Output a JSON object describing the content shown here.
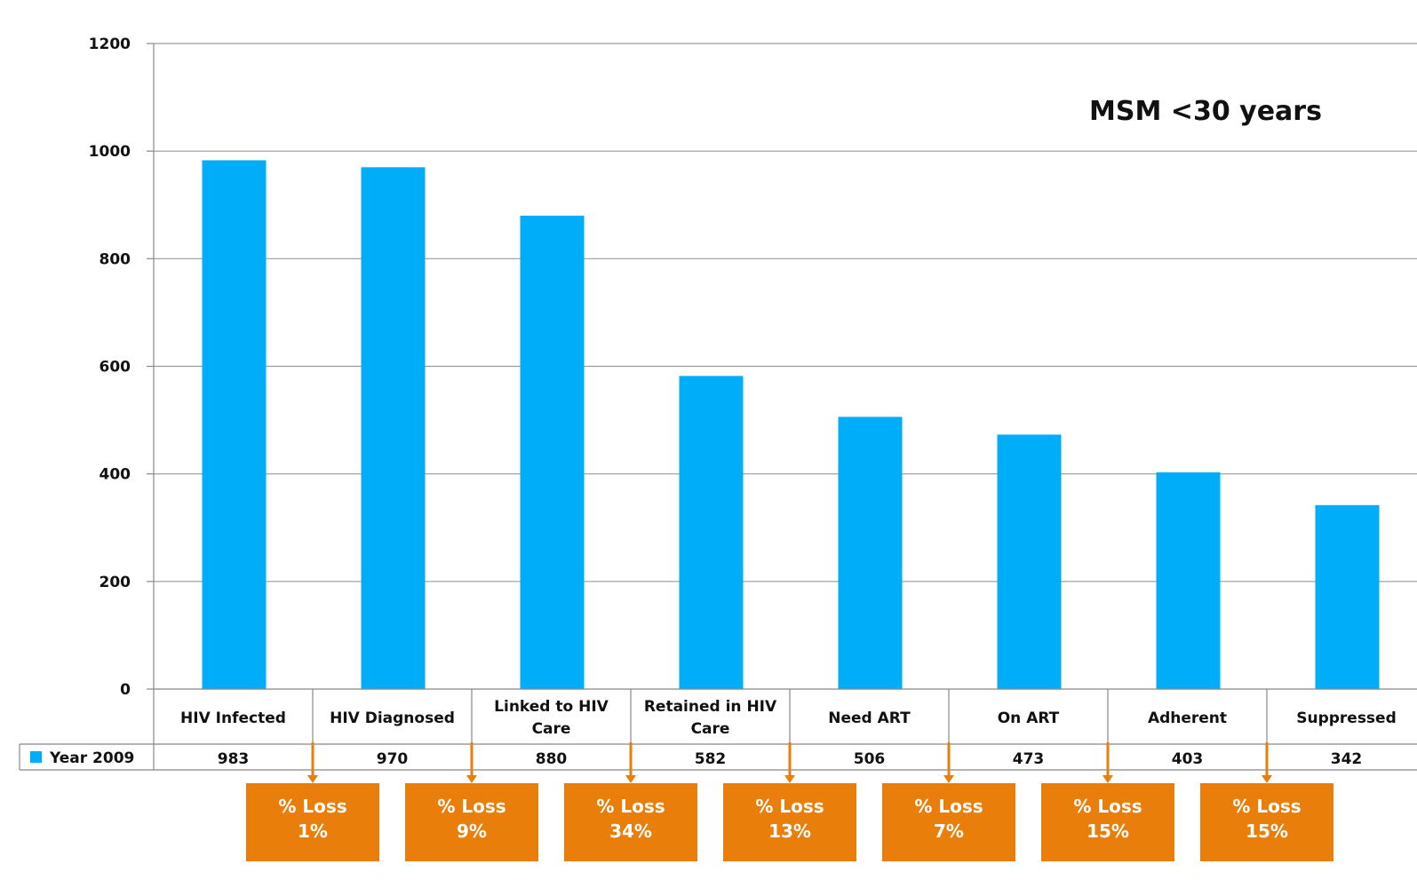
{
  "chart_data": {
    "type": "bar",
    "title": "MSM <30 years",
    "categories": [
      [
        "HIV Infected"
      ],
      [
        "HIV Diagnosed"
      ],
      [
        "Linked to HIV",
        "Care"
      ],
      [
        "Retained in HIV",
        "Care"
      ],
      [
        "Need ART"
      ],
      [
        "On ART"
      ],
      [
        "Adherent"
      ],
      [
        "Suppressed"
      ]
    ],
    "series": [
      {
        "name": "Year 2009",
        "values": [
          983,
          970,
          880,
          582,
          506,
          473,
          403,
          342
        ],
        "color": "#00ADF8"
      }
    ],
    "ylim": [
      0,
      1200
    ],
    "yticks": [
      0,
      200,
      400,
      600,
      800,
      1000,
      1200
    ],
    "grid": true,
    "legend": "data-table-left",
    "data_table": true,
    "loss_boxes": [
      {
        "title": "% Loss",
        "value": "1%"
      },
      {
        "title": "% Loss",
        "value": "9%"
      },
      {
        "title": "% Loss",
        "value": "34%"
      },
      {
        "title": "% Loss",
        "value": "13%"
      },
      {
        "title": "% Loss",
        "value": "7%"
      },
      {
        "title": "% Loss",
        "value": "15%"
      },
      {
        "title": "% Loss",
        "value": "15%"
      }
    ],
    "loss_color": "#EA7E0A"
  }
}
